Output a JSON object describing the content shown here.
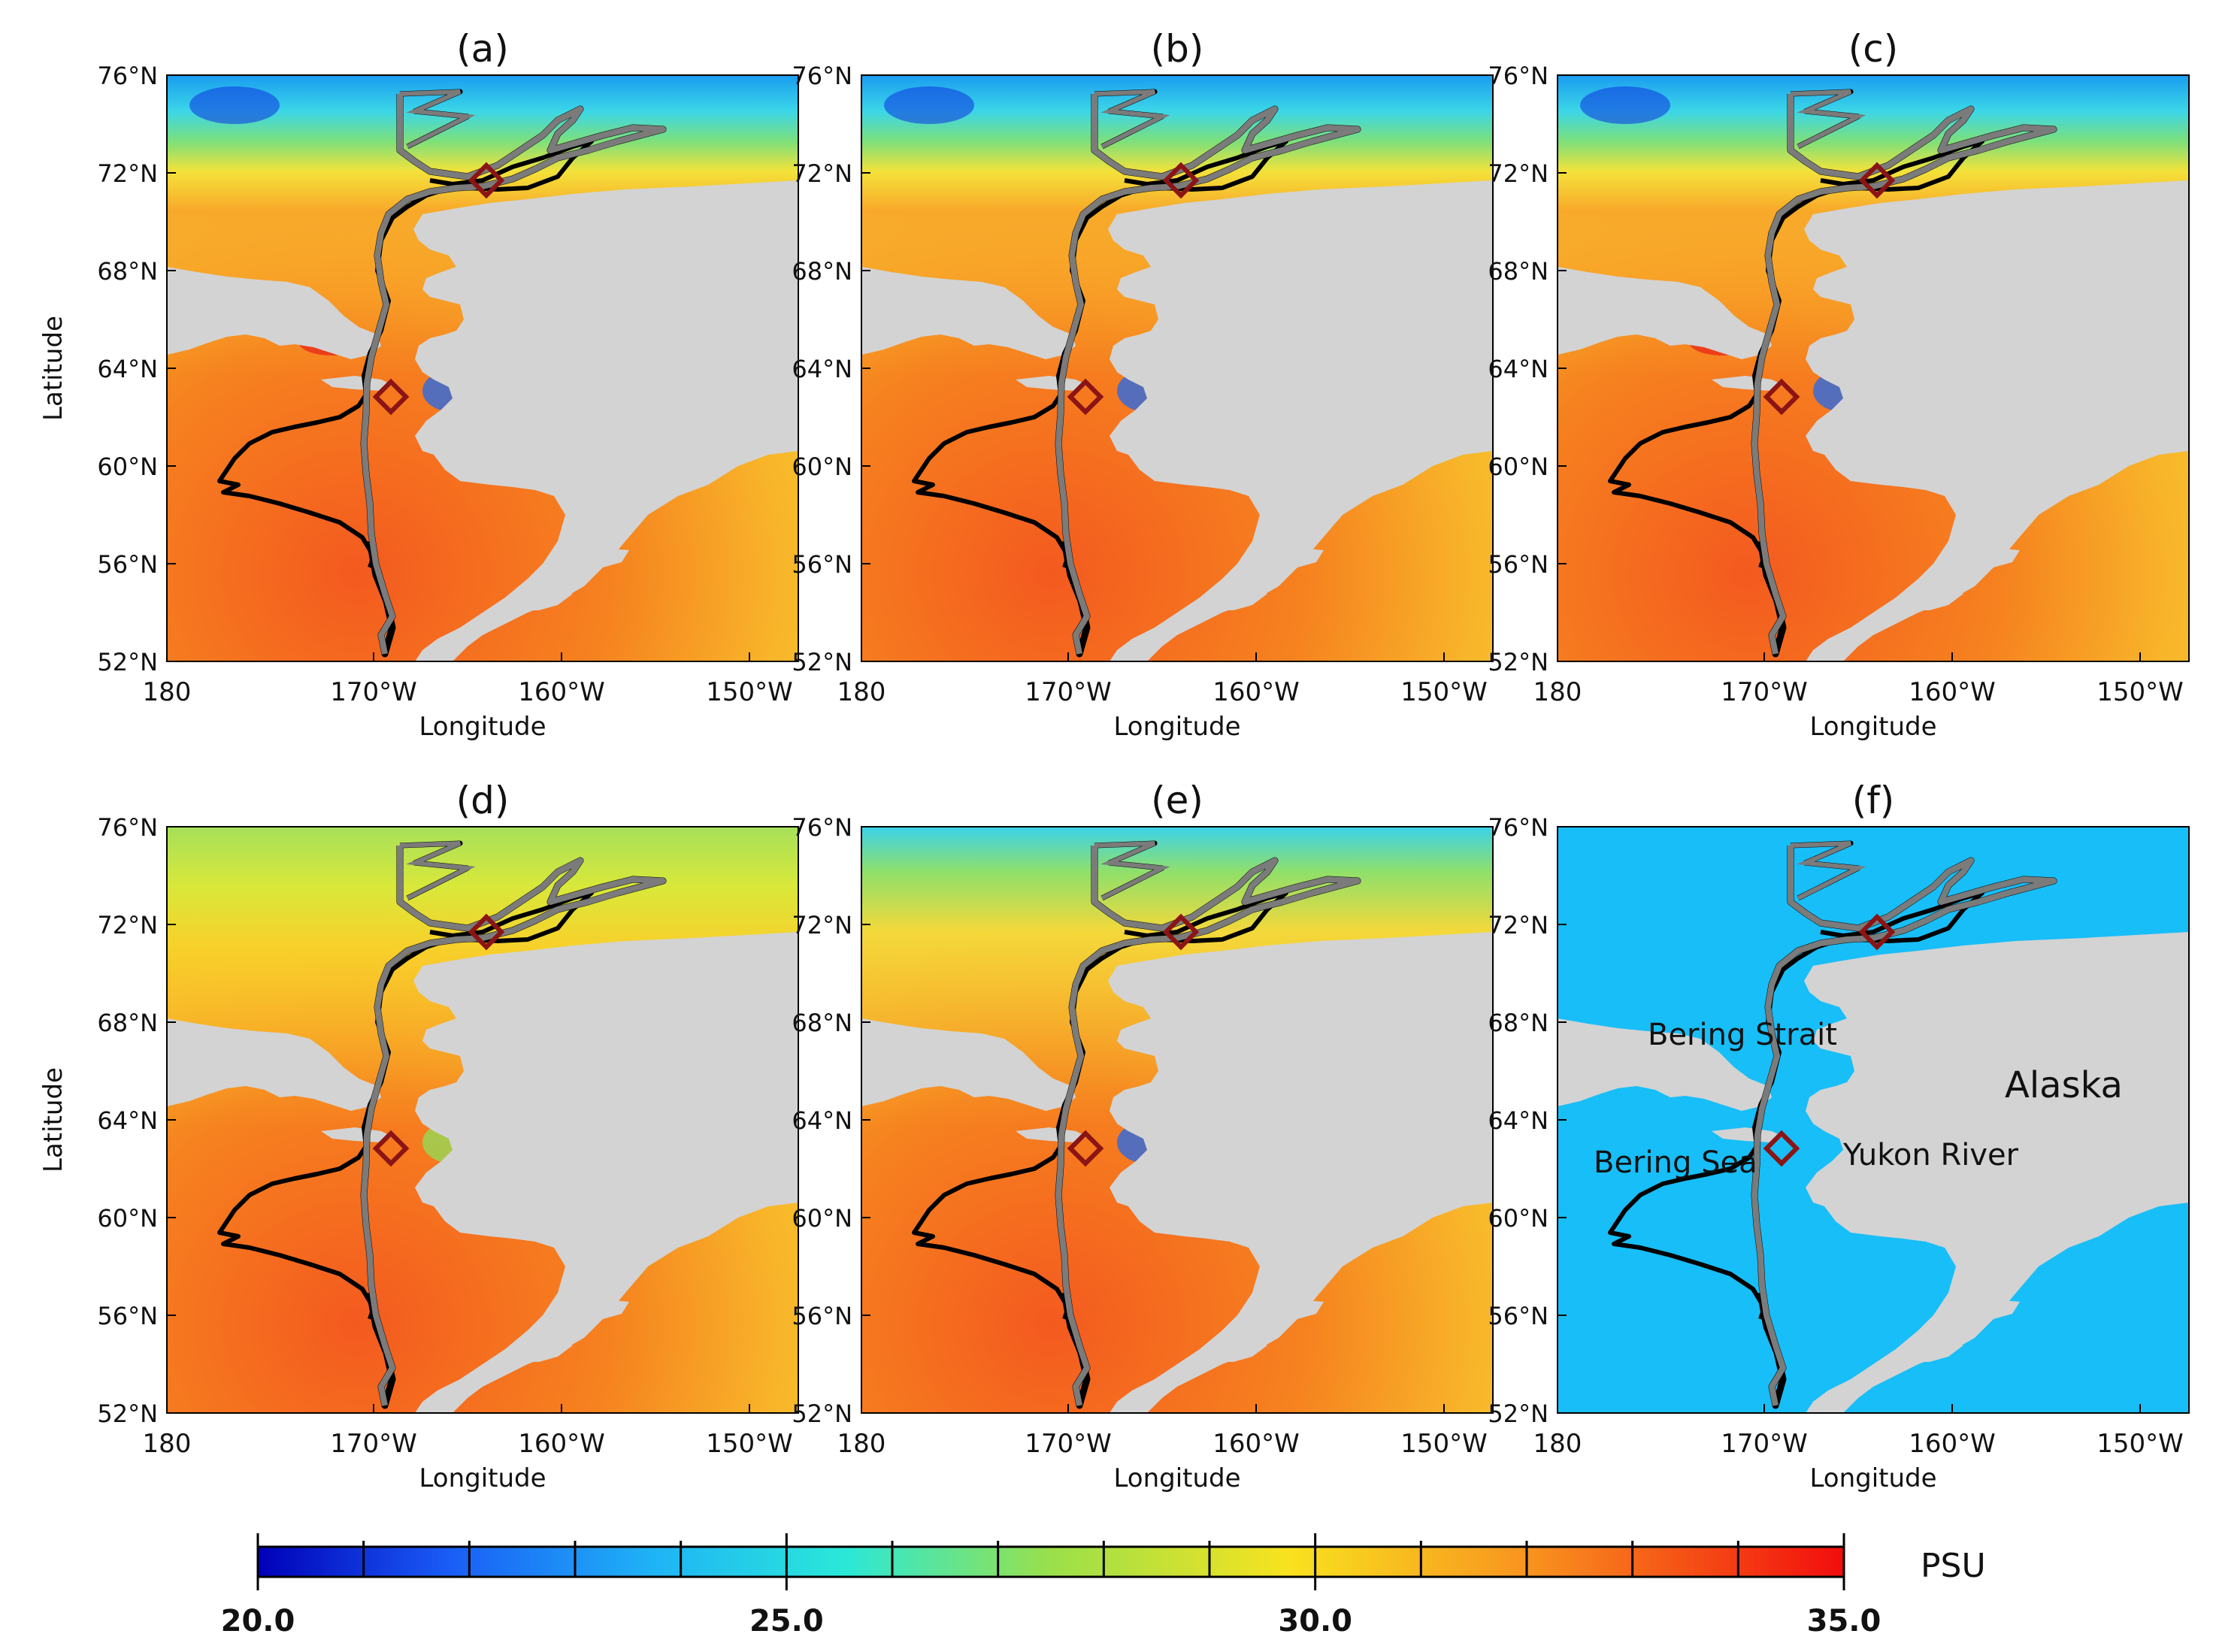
{
  "panels": [
    {
      "id": "a",
      "label": "(a)"
    },
    {
      "id": "b",
      "label": "(b)"
    },
    {
      "id": "c",
      "label": "(c)"
    },
    {
      "id": "d",
      "label": "(d)"
    },
    {
      "id": "e",
      "label": "(e)"
    },
    {
      "id": "f",
      "label": "(f)"
    }
  ],
  "axes": {
    "lat_ticks": [
      "76°N",
      "72°N",
      "68°N",
      "64°N",
      "60°N",
      "56°N",
      "52°N"
    ],
    "lon_ticks": [
      "180",
      "170°W",
      "160°W",
      "150°W"
    ],
    "xlabel": "Longitude",
    "ylabel": "Latitude"
  },
  "place_names": {
    "bering_strait": "Bering Strait",
    "alaska": "Alaska",
    "bering_sea": "Bering Sea",
    "yukon_river": "Yukon River"
  },
  "colorbar": {
    "min": 20.0,
    "max": 35.0,
    "tick_labels": [
      "20.0",
      "25.0",
      "30.0",
      "35.0"
    ],
    "unit": "PSU"
  },
  "colors": {
    "land": "#d3d3d3",
    "panel_f_sea": "#18bef8",
    "track_gray": "#7b7b7b",
    "track_black": "#000000",
    "station_marker": "#8b1414"
  }
}
